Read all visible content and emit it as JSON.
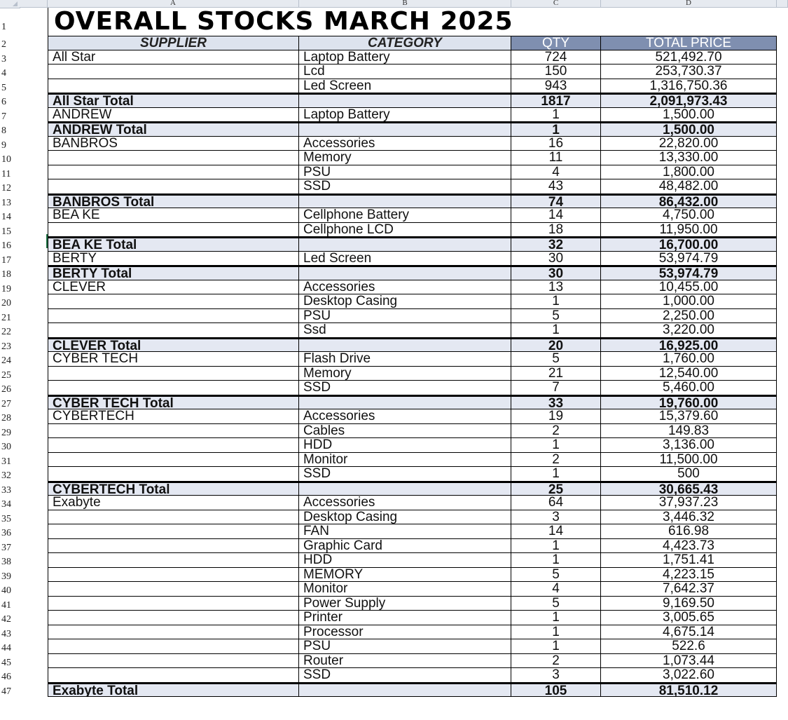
{
  "column_headers": [
    "A",
    "B",
    "C",
    "D"
  ],
  "row_numbers": [
    "1",
    "2",
    "3",
    "4",
    "5",
    "6",
    "7",
    "8",
    "9",
    "10",
    "11",
    "12",
    "13",
    "14",
    "15",
    "16",
    "17",
    "18",
    "19",
    "20",
    "21",
    "22",
    "23",
    "24",
    "25",
    "26",
    "27",
    "28",
    "29",
    "30",
    "31",
    "32",
    "33",
    "34",
    "35",
    "36",
    "37",
    "38",
    "39",
    "40",
    "41",
    "42",
    "43",
    "44",
    "45",
    "46",
    "47"
  ],
  "title": "OVERALL STOCKS MARCH 2025",
  "headers": {
    "supplier": "SUPPLIER",
    "category": "CATEGORY",
    "qty": "QTY",
    "total_price": "TOTAL PRICE"
  },
  "rows": [
    {
      "supplier": "All Star",
      "category": "Laptop Battery",
      "qty": "724",
      "total": "521,492.70",
      "is_total": false
    },
    {
      "supplier": "",
      "category": "Lcd",
      "qty": "150",
      "total": "253,730.37",
      "is_total": false
    },
    {
      "supplier": "",
      "category": "Led Screen",
      "qty": "943",
      "total": "1,316,750.36",
      "is_total": false
    },
    {
      "supplier": "All Star Total",
      "category": "",
      "qty": "1817",
      "total": "2,091,973.43",
      "is_total": true
    },
    {
      "supplier": "ANDREW",
      "category": "Laptop Battery",
      "qty": "1",
      "total": "1,500.00",
      "is_total": false
    },
    {
      "supplier": "ANDREW Total",
      "category": "",
      "qty": "1",
      "total": "1,500.00",
      "is_total": true
    },
    {
      "supplier": "BANBROS",
      "category": "Accessories",
      "qty": "16",
      "total": "22,820.00",
      "is_total": false
    },
    {
      "supplier": "",
      "category": "Memory",
      "qty": "11",
      "total": "13,330.00",
      "is_total": false
    },
    {
      "supplier": "",
      "category": "PSU",
      "qty": "4",
      "total": "1,800.00",
      "is_total": false
    },
    {
      "supplier": "",
      "category": "SSD",
      "qty": "43",
      "total": "48,482.00",
      "is_total": false
    },
    {
      "supplier": "BANBROS Total",
      "category": "",
      "qty": "74",
      "total": "86,432.00",
      "is_total": true
    },
    {
      "supplier": "BEA KE",
      "category": "Cellphone Battery",
      "qty": "14",
      "total": "4,750.00",
      "is_total": false
    },
    {
      "supplier": "",
      "category": "Cellphone LCD",
      "qty": "18",
      "total": "11,950.00",
      "is_total": false
    },
    {
      "supplier": "BEA KE Total",
      "category": "",
      "qty": "32",
      "total": "16,700.00",
      "is_total": true
    },
    {
      "supplier": "BERTY",
      "category": "Led Screen",
      "qty": "30",
      "total": "53,974.79",
      "is_total": false
    },
    {
      "supplier": "BERTY Total",
      "category": "",
      "qty": "30",
      "total": "53,974.79",
      "is_total": true
    },
    {
      "supplier": "CLEVER",
      "category": "Accessories",
      "qty": "13",
      "total": "10,455.00",
      "is_total": false
    },
    {
      "supplier": "",
      "category": "Desktop Casing",
      "qty": "1",
      "total": "1,000.00",
      "is_total": false
    },
    {
      "supplier": "",
      "category": "PSU",
      "qty": "5",
      "total": "2,250.00",
      "is_total": false
    },
    {
      "supplier": "",
      "category": "Ssd",
      "qty": "1",
      "total": "3,220.00",
      "is_total": false
    },
    {
      "supplier": "CLEVER Total",
      "category": "",
      "qty": "20",
      "total": "16,925.00",
      "is_total": true
    },
    {
      "supplier": "CYBER TECH",
      "category": "Flash Drive",
      "qty": "5",
      "total": "1,760.00",
      "is_total": false
    },
    {
      "supplier": "",
      "category": "Memory",
      "qty": "21",
      "total": "12,540.00",
      "is_total": false
    },
    {
      "supplier": "",
      "category": "SSD",
      "qty": "7",
      "total": "5,460.00",
      "is_total": false
    },
    {
      "supplier": "CYBER TECH Total",
      "category": "",
      "qty": "33",
      "total": "19,760.00",
      "is_total": true
    },
    {
      "supplier": "CYBERTECH",
      "category": "Accessories",
      "qty": "19",
      "total": "15,379.60",
      "is_total": false
    },
    {
      "supplier": "",
      "category": "Cables",
      "qty": "2",
      "total": "149.83",
      "is_total": false
    },
    {
      "supplier": "",
      "category": "HDD",
      "qty": "1",
      "total": "3,136.00",
      "is_total": false
    },
    {
      "supplier": "",
      "category": "Monitor",
      "qty": "2",
      "total": "11,500.00",
      "is_total": false
    },
    {
      "supplier": "",
      "category": "SSD",
      "qty": "1",
      "total": "500",
      "is_total": false
    },
    {
      "supplier": "CYBERTECH Total",
      "category": "",
      "qty": "25",
      "total": "30,665.43",
      "is_total": true
    },
    {
      "supplier": "Exabyte",
      "category": "Accessories",
      "qty": "64",
      "total": "37,937.23",
      "is_total": false
    },
    {
      "supplier": "",
      "category": "Desktop Casing",
      "qty": "3",
      "total": "3,446.32",
      "is_total": false
    },
    {
      "supplier": "",
      "category": "FAN",
      "qty": "14",
      "total": "616.98",
      "is_total": false
    },
    {
      "supplier": "",
      "category": "Graphic Card",
      "qty": "1",
      "total": "4,423.73",
      "is_total": false
    },
    {
      "supplier": "",
      "category": "HDD",
      "qty": "1",
      "total": "1,751.41",
      "is_total": false
    },
    {
      "supplier": "",
      "category": "MEMORY",
      "qty": "5",
      "total": "4,223.15",
      "is_total": false
    },
    {
      "supplier": "",
      "category": "Monitor",
      "qty": "4",
      "total": "7,642.37",
      "is_total": false
    },
    {
      "supplier": "",
      "category": "Power Supply",
      "qty": "5",
      "total": "9,169.50",
      "is_total": false
    },
    {
      "supplier": "",
      "category": "Printer",
      "qty": "1",
      "total": "3,005.65",
      "is_total": false
    },
    {
      "supplier": "",
      "category": "Processor",
      "qty": "1",
      "total": "4,675.14",
      "is_total": false
    },
    {
      "supplier": "",
      "category": "PSU",
      "qty": "1",
      "total": "522.6",
      "is_total": false
    },
    {
      "supplier": "",
      "category": "Router",
      "qty": "2",
      "total": "1,073.44",
      "is_total": false
    },
    {
      "supplier": "",
      "category": "SSD",
      "qty": "3",
      "total": "3,022.60",
      "is_total": false
    },
    {
      "supplier": "Exabyte Total",
      "category": "",
      "qty": "105",
      "total": "81,510.12",
      "is_total": true
    }
  ],
  "colors": {
    "header_fill": "#dde3ee",
    "header_dark_fill": "#7f8fb0",
    "total_fill": "#e4e8f2",
    "selection": "#217346"
  }
}
